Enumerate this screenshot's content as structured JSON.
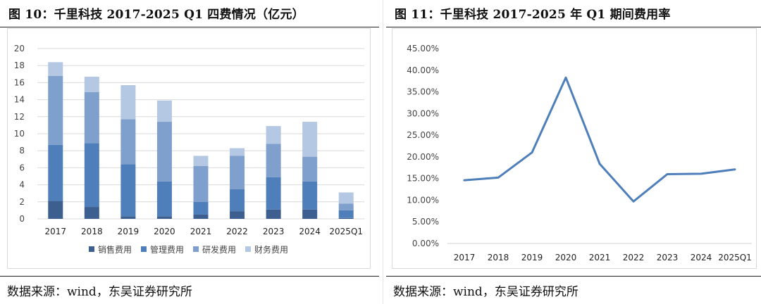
{
  "left_panel": {
    "title": "图 10：千里科技 2017-2025 Q1 四费情况（亿元）",
    "source": "数据来源：wind，东吴证券研究所"
  },
  "right_panel": {
    "title": "图 11：千里科技 2017-2025 年 Q1 期间费用率",
    "source": "数据来源：wind，东吴证券研究所"
  },
  "chart_data": [
    {
      "type": "bar",
      "stacked": true,
      "categories": [
        "2017",
        "2018",
        "2019",
        "2020",
        "2021",
        "2022",
        "2023",
        "2024",
        "2025Q1"
      ],
      "series": [
        {
          "name": "销售费用",
          "color": "#3d5f8f",
          "values": [
            2.1,
            1.4,
            0.3,
            0.3,
            0.5,
            0.9,
            1.1,
            1.1,
            0.1
          ]
        },
        {
          "name": "管理费用",
          "color": "#4f7fba",
          "values": [
            6.6,
            7.5,
            6.1,
            4.1,
            1.5,
            2.6,
            3.8,
            3.3,
            0.9
          ]
        },
        {
          "name": "研发费用",
          "color": "#7f9fcc",
          "values": [
            8.1,
            6.0,
            5.3,
            7.0,
            4.2,
            3.9,
            3.9,
            2.9,
            0.8
          ]
        },
        {
          "name": "财务费用",
          "color": "#b4c7e3",
          "values": [
            1.6,
            1.8,
            4.0,
            2.5,
            1.2,
            0.9,
            2.1,
            4.1,
            1.3
          ]
        }
      ],
      "ylim": [
        0,
        20
      ],
      "yticks": [
        "0",
        "2",
        "4",
        "6",
        "8",
        "10",
        "12",
        "14",
        "16",
        "18",
        "20"
      ],
      "grid": true,
      "legend": "bottom"
    },
    {
      "type": "line",
      "categories": [
        "2017",
        "2018",
        "2019",
        "2020",
        "2021",
        "2022",
        "2023",
        "2024",
        "2025Q1"
      ],
      "series": [
        {
          "color": "#4f7fba",
          "values": [
            14.6,
            15.2,
            21.0,
            38.3,
            18.4,
            9.7,
            16.0,
            16.1,
            17.1
          ]
        }
      ],
      "ylim": [
        0,
        45
      ],
      "yticks": [
        "0.00%",
        "5.00%",
        "10.00%",
        "15.00%",
        "20.00%",
        "25.00%",
        "30.00%",
        "35.00%",
        "40.00%",
        "45.00%"
      ],
      "grid": false
    }
  ]
}
